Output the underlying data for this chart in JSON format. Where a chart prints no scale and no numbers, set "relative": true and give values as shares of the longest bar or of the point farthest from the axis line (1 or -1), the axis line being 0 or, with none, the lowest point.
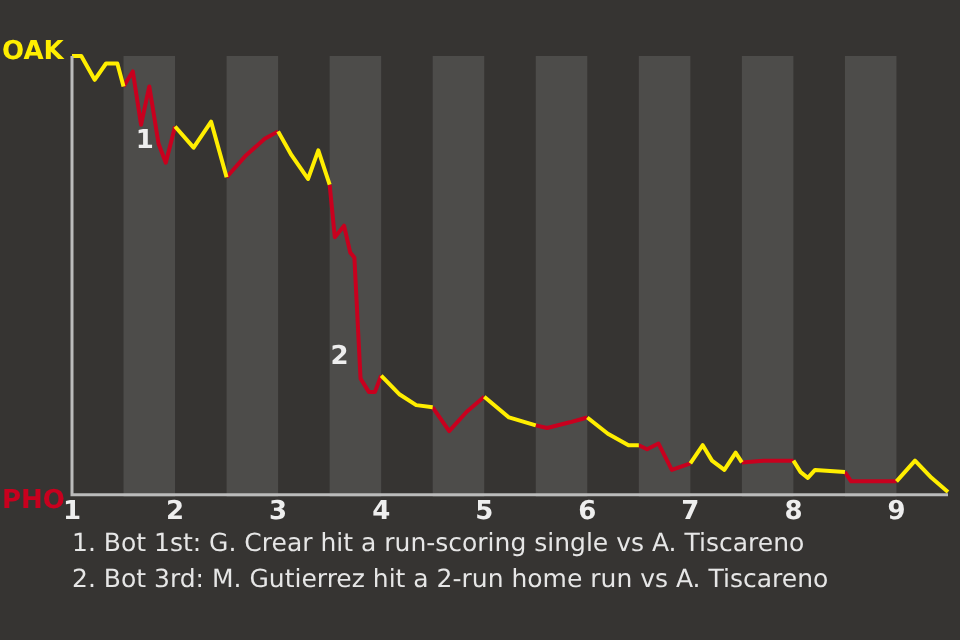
{
  "chart_data": {
    "type": "line",
    "relative": true,
    "x": [
      1,
      1.09,
      1.22,
      1.33,
      1.44,
      1.5,
      1.59,
      1.67,
      1.75,
      1.84,
      1.91,
      2,
      2.18,
      2.35,
      2.5,
      2.69,
      2.87,
      3,
      3.13,
      3.29,
      3.39,
      3.5,
      3.55,
      3.64,
      3.7,
      3.74,
      3.8,
      3.88,
      3.94,
      4,
      4.18,
      4.34,
      4.5,
      4.66,
      4.83,
      5,
      5.24,
      5.5,
      5.61,
      5.83,
      6,
      6.2,
      6.4,
      6.5,
      6.58,
      6.69,
      6.82,
      7,
      7.12,
      7.21,
      7.33,
      7.44,
      7.5,
      7.71,
      8,
      8.07,
      8.14,
      8.21,
      8.5,
      8.56,
      9,
      9.18,
      9.34,
      9.5
    ],
    "series": [
      {
        "name": "OAK",
        "color": "#ffee00",
        "values": [
          1,
          1,
          0.946,
          0.983,
          0.983,
          0.931,
          null,
          null,
          null,
          null,
          null,
          0.84,
          0.792,
          0.851,
          0.725,
          null,
          null,
          0.829,
          0.775,
          0.721,
          0.786,
          0.708,
          null,
          null,
          null,
          null,
          null,
          null,
          null,
          0.275,
          0.232,
          0.208,
          0.203,
          null,
          null,
          0.227,
          0.18,
          0.162,
          null,
          null,
          0.18,
          0.143,
          0.117,
          0.117,
          null,
          null,
          null,
          0.076,
          0.117,
          0.082,
          0.061,
          0.1,
          0.078,
          null,
          0.082,
          0.056,
          0.043,
          0.061,
          0.056,
          null,
          0.035,
          0.082,
          0.043,
          0.011
        ]
      },
      {
        "name": "PHO",
        "color": "#c8001e",
        "values": [
          null,
          null,
          null,
          null,
          null,
          0.931,
          0.965,
          0.844,
          0.931,
          0.801,
          0.758,
          0.84,
          null,
          null,
          0.725,
          0.775,
          0.812,
          0.829,
          null,
          null,
          null,
          0.708,
          0.589,
          0.615,
          0.554,
          0.543,
          0.268,
          0.238,
          0.238,
          0.275,
          null,
          null,
          0.203,
          0.149,
          0.193,
          0.227,
          null,
          0.162,
          0.156,
          0.169,
          0.18,
          null,
          null,
          0.117,
          0.108,
          0.121,
          0.061,
          0.076,
          null,
          null,
          null,
          null,
          0.078,
          0.082,
          0.082,
          null,
          null,
          null,
          0.056,
          0.035,
          0.035,
          null,
          null,
          null
        ]
      }
    ],
    "xlim": [
      1,
      9.5
    ],
    "xticks": [
      1,
      2,
      3,
      4,
      5,
      6,
      7,
      8,
      9
    ],
    "bands": [
      {
        "axis": "x",
        "from": 1.5,
        "to": 2,
        "color": "#4d4c4a"
      },
      {
        "axis": "x",
        "from": 2.5,
        "to": 3,
        "color": "#4d4c4a"
      },
      {
        "axis": "x",
        "from": 3.5,
        "to": 4,
        "color": "#4d4c4a"
      },
      {
        "axis": "x",
        "from": 4.5,
        "to": 5,
        "color": "#4d4c4a"
      },
      {
        "axis": "x",
        "from": 5.5,
        "to": 6,
        "color": "#4d4c4a"
      },
      {
        "axis": "x",
        "from": 6.5,
        "to": 7,
        "color": "#4d4c4a"
      },
      {
        "axis": "x",
        "from": 7.5,
        "to": 8,
        "color": "#4d4c4a"
      },
      {
        "axis": "x",
        "from": 8.5,
        "to": 9,
        "color": "#4d4c4a"
      }
    ],
    "annotations": [
      {
        "text": "1",
        "x": 1.91,
        "y": 0.758
      },
      {
        "text": "2",
        "x": 3.8,
        "y": 0.268
      },
      "1. Bot 1st: G. Crear hit a run-scoring single vs A. Tiscareno",
      "2. Bot 3rd: M. Gutierrez hit a 2-run home run vs A. Tiscareno"
    ]
  }
}
